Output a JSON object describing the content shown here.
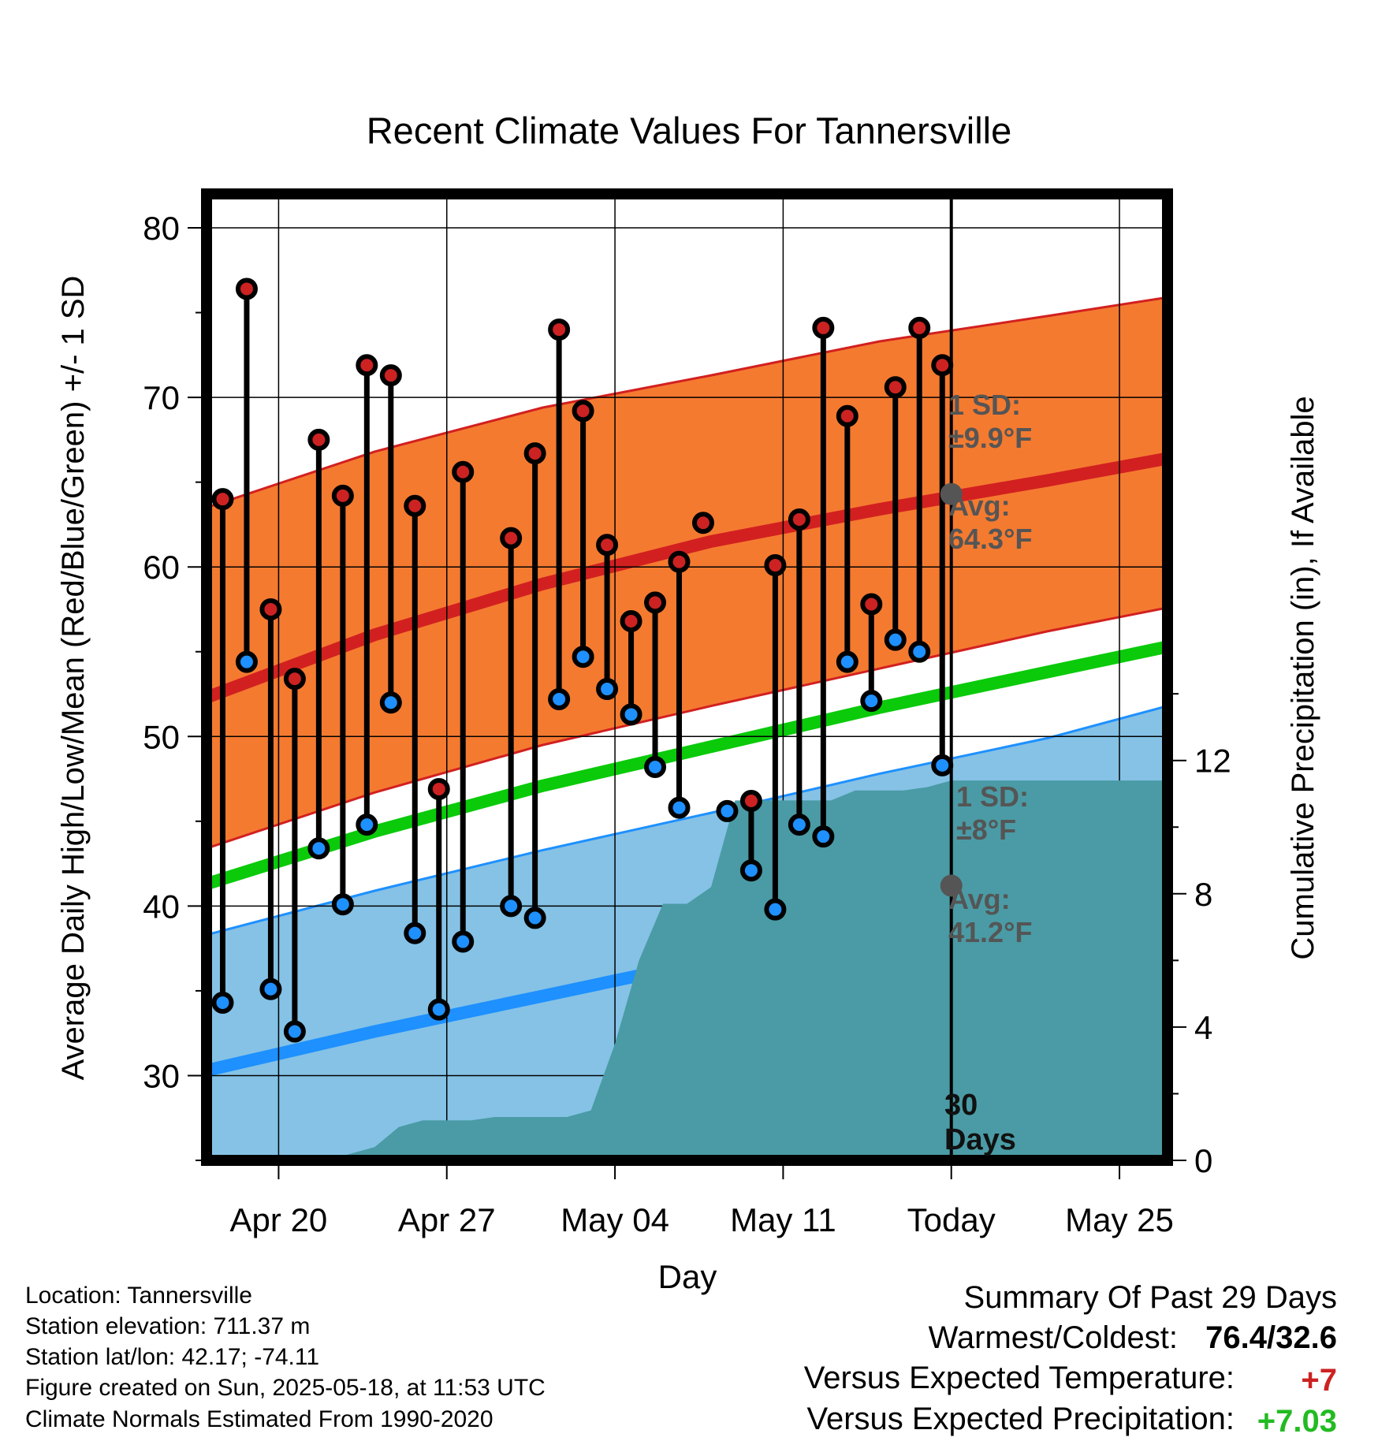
{
  "colors": {
    "high_band": "#F47A30",
    "high_band_edge": "#D22020",
    "avg_high_line": "#D22020",
    "mean_line": "#0ACA0A",
    "low_band": "#85C2E6",
    "low_band_edge": "#1E90FF",
    "avg_low_line": "#1E90FF",
    "precip_fill": "#4A9BA5",
    "high_marker": "#CC2222",
    "low_marker": "#1E90FF",
    "avg_marker": "#555555",
    "plus_red": "#CC2222",
    "plus_green": "#22BB22"
  },
  "chart_data": {
    "type": "line",
    "title": "Recent Climate Values For Tannersville",
    "xlabel": "Day",
    "ylabel": "Average Daily High/Low/Mean (Red/Blue/Green) +/- 1 SD",
    "y2label": "Cumulative Precipitation (in), If Available",
    "ylim": [
      25,
      82
    ],
    "y2lim": [
      0,
      29
    ],
    "yticks": [
      30,
      40,
      50,
      60,
      70,
      80
    ],
    "y2ticks": [
      0,
      4,
      8,
      12
    ],
    "xlim": [
      "2025-04-17",
      "2025-05-27"
    ],
    "xticks": [
      {
        "date": "2025-04-20",
        "label": "Apr 20"
      },
      {
        "date": "2025-04-27",
        "label": "Apr 27"
      },
      {
        "date": "2025-05-04",
        "label": "May 04"
      },
      {
        "date": "2025-05-11",
        "label": "May 11"
      },
      {
        "date": "2025-05-18",
        "label": "Today"
      },
      {
        "date": "2025-05-25",
        "label": "May 25"
      }
    ],
    "today": "2025-05-18",
    "grid": true,
    "normals_dates": [
      "2025-04-17",
      "2025-04-24",
      "2025-05-01",
      "2025-05-08",
      "2025-05-15",
      "2025-05-22",
      "2025-05-27"
    ],
    "normal_high": [
      52.3,
      56.0,
      59.0,
      61.5,
      63.4,
      65.1,
      66.4
    ],
    "normal_high_sd_upper": [
      63.5,
      66.8,
      69.4,
      71.3,
      73.3,
      74.8,
      75.9
    ],
    "normal_high_sd_lower": [
      43.4,
      46.7,
      49.5,
      51.8,
      54.0,
      56.2,
      57.6
    ],
    "normal_mean": [
      41.3,
      44.4,
      47.1,
      49.4,
      51.7,
      53.8,
      55.3
    ],
    "normal_low": [
      30.3,
      32.6,
      34.7,
      36.8,
      38.9,
      41.0,
      43.0
    ],
    "normal_low_sd_upper": [
      38.3,
      40.9,
      43.3,
      45.5,
      47.8,
      49.9,
      51.8
    ],
    "normal_low_sd_lower": [
      22.3,
      24.5,
      26.7,
      28.9,
      31.1,
      33.2,
      35.0
    ],
    "daily_dates": [
      "2025-04-18",
      "2025-04-19",
      "2025-04-20",
      "2025-04-21",
      "2025-04-22",
      "2025-04-23",
      "2025-04-24",
      "2025-04-25",
      "2025-04-26",
      "2025-04-27",
      "2025-04-28",
      "2025-04-29",
      "2025-04-30",
      "2025-05-01",
      "2025-05-02",
      "2025-05-03",
      "2025-05-04",
      "2025-05-05",
      "2025-05-06",
      "2025-05-07",
      "2025-05-08",
      "2025-05-09",
      "2025-05-10",
      "2025-05-11",
      "2025-05-12",
      "2025-05-13",
      "2025-05-14",
      "2025-05-15",
      "2025-05-16",
      "2025-05-17"
    ],
    "daily_high": [
      64.0,
      76.4,
      57.5,
      53.4,
      67.5,
      64.2,
      71.9,
      71.3,
      63.6,
      46.9,
      65.6,
      null,
      61.7,
      66.7,
      74.0,
      69.2,
      61.3,
      56.8,
      57.9,
      60.3,
      62.6,
      null,
      46.2,
      60.1,
      62.8,
      74.1,
      68.9,
      57.8,
      70.6,
      74.1
    ],
    "daily_low": [
      34.3,
      54.4,
      35.1,
      32.6,
      43.4,
      40.1,
      44.8,
      52.0,
      38.4,
      33.9,
      37.9,
      null,
      40.0,
      39.3,
      52.2,
      54.7,
      52.8,
      51.3,
      48.2,
      45.8,
      null,
      45.6,
      42.1,
      39.8,
      44.8,
      44.1,
      54.4,
      52.1,
      55.7,
      55.0
    ],
    "daily_high_extra": {
      "date": "2025-05-17",
      "high": 71.9,
      "low": 48.3
    },
    "precip_dates": [
      "2025-04-17",
      "2025-04-18",
      "2025-04-20",
      "2025-04-21",
      "2025-04-22",
      "2025-04-23",
      "2025-04-24",
      "2025-04-25",
      "2025-04-26",
      "2025-04-27",
      "2025-04-28",
      "2025-04-29",
      "2025-05-01",
      "2025-05-02",
      "2025-05-03",
      "2025-05-04",
      "2025-05-05",
      "2025-05-06",
      "2025-05-07",
      "2025-05-08",
      "2025-05-09",
      "2025-05-10",
      "2025-05-11",
      "2025-05-12",
      "2025-05-13",
      "2025-05-14",
      "2025-05-15",
      "2025-05-16",
      "2025-05-17",
      "2025-05-18",
      "2025-05-27"
    ],
    "precip_cum": [
      0.0,
      0.0,
      0.0,
      0.0,
      0.0,
      0.2,
      0.4,
      1.0,
      1.2,
      1.2,
      1.2,
      1.3,
      1.3,
      1.3,
      1.5,
      3.5,
      6.0,
      7.7,
      7.7,
      8.2,
      10.8,
      10.8,
      10.8,
      10.8,
      10.8,
      11.1,
      11.1,
      11.1,
      11.2,
      11.4,
      11.4
    ],
    "annotations": {
      "high_sd_line1": "1 SD:",
      "high_sd_line2": "±9.9°F",
      "high_avg_line1": "Avg:",
      "high_avg_line2": "64.3°F",
      "high_avg_value": 64.3,
      "low_sd_line1": "1 SD:",
      "low_sd_line2": "±8°F",
      "low_avg_line1": "Avg:",
      "low_avg_line2": "41.2°F",
      "low_avg_value": 41.2,
      "days_line1": "30",
      "days_line2": "Days"
    }
  },
  "info": {
    "location": "Location: Tannersville",
    "elevation": "Station elevation: 711.37 m",
    "latlon": "Station lat/lon: 42.17; -74.11",
    "created": "Figure created on Sun, 2025-05-18, at 11:53 UTC",
    "normals": "Climate Normals Estimated From 1990-2020"
  },
  "summary": {
    "title": "Summary Of Past 29 Days",
    "warm_cold_label": "Warmest/Coldest:",
    "warm_cold_value": "76.4/32.6",
    "temp_label": "Versus Expected Temperature:",
    "temp_value": "+7",
    "precip_label": "Versus Expected Precipitation:",
    "precip_value": "+7.03"
  }
}
